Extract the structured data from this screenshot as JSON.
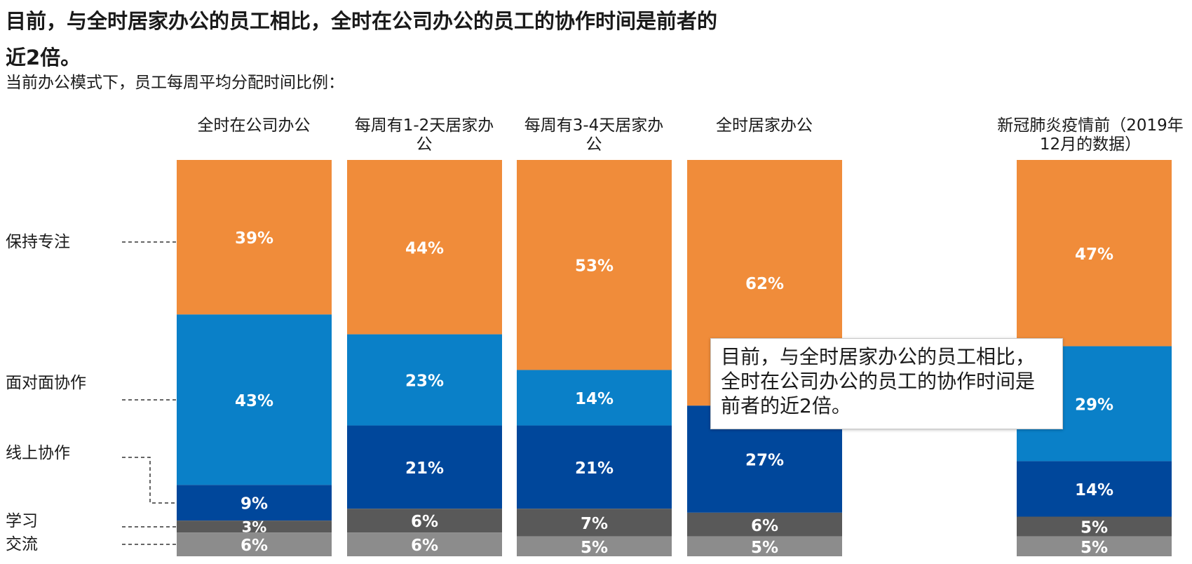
{
  "title": "目前，与全时居家办公的员工相比，全时在公司办公的员工的协作时间是前者的近2倍。",
  "subtitle": "当前办公模式下，员工每周平均分配时间比例：",
  "callout": "目前，与全时居家办公的员工相比，全时在公司办公的员工的协作时间是前者的近2倍。",
  "colors": {
    "focus": "#f08c3a",
    "in_person": "#0a80c8",
    "online": "#00479b",
    "learning": "#595959",
    "social": "#8c8c8c"
  },
  "chart_data": {
    "type": "bar",
    "stacked": true,
    "unit": "%",
    "categories": [
      "全时在公司办公",
      "每周有1-2天居家办公",
      "每周有3-4天居家办公",
      "全时居家办公",
      "新冠肺炎疫情前（2019年12月的数据）"
    ],
    "series": [
      {
        "name": "保持专注",
        "color": "#f08c3a",
        "values": [
          39,
          44,
          53,
          62,
          47
        ]
      },
      {
        "name": "面对面协作",
        "color": "#0a80c8",
        "values": [
          43,
          23,
          14,
          0,
          29
        ]
      },
      {
        "name": "线上协作",
        "color": "#00479b",
        "values": [
          9,
          21,
          21,
          27,
          14
        ]
      },
      {
        "name": "学习",
        "color": "#595959",
        "values": [
          3,
          6,
          7,
          6,
          5
        ]
      },
      {
        "name": "交流",
        "color": "#8c8c8c",
        "values": [
          6,
          6,
          5,
          5,
          5
        ]
      }
    ],
    "ylim": [
      0,
      100
    ],
    "grid": false,
    "legend": "left"
  }
}
